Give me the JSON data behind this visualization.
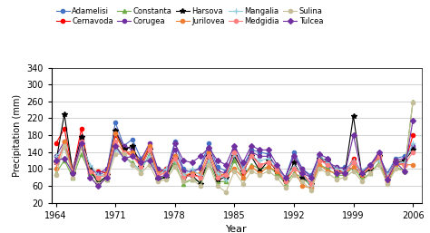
{
  "title": "",
  "xlabel": "Year",
  "ylabel": "Precipitation (mm)",
  "ylim": [
    20,
    340
  ],
  "xlim": [
    1963.5,
    2007
  ],
  "yticks": [
    20,
    60,
    100,
    140,
    180,
    220,
    260,
    300,
    340
  ],
  "xticks": [
    1964,
    1971,
    1978,
    1985,
    1992,
    1999,
    2006
  ],
  "years": [
    1964,
    1965,
    1966,
    1967,
    1968,
    1969,
    1970,
    1971,
    1972,
    1973,
    1974,
    1975,
    1976,
    1977,
    1978,
    1979,
    1980,
    1981,
    1982,
    1983,
    1984,
    1985,
    1986,
    1987,
    1988,
    1989,
    1990,
    1991,
    1992,
    1993,
    1994,
    1995,
    1996,
    1997,
    1998,
    1999,
    2000,
    2001,
    2002,
    2003,
    2004,
    2005,
    2006
  ],
  "stations": {
    "Adamelisi": {
      "color": "#4472C4",
      "marker": "o",
      "markersize": 3,
      "linewidth": 0.8,
      "values": [
        115,
        155,
        95,
        170,
        105,
        85,
        95,
        210,
        155,
        170,
        125,
        150,
        100,
        90,
        165,
        100,
        90,
        105,
        160,
        105,
        95,
        145,
        105,
        145,
        140,
        135,
        100,
        80,
        140,
        100,
        85,
        130,
        105,
        100,
        105,
        100,
        95,
        110,
        130,
        90,
        125,
        130,
        150
      ]
    },
    "Cernavoda": {
      "color": "#FF0000",
      "marker": "o",
      "markersize": 3,
      "linewidth": 0.8,
      "values": [
        160,
        195,
        95,
        195,
        90,
        95,
        90,
        180,
        145,
        130,
        110,
        150,
        90,
        100,
        130,
        80,
        90,
        80,
        130,
        80,
        90,
        140,
        90,
        135,
        110,
        115,
        100,
        70,
        100,
        90,
        65,
        120,
        115,
        100,
        90,
        125,
        90,
        105,
        130,
        80,
        120,
        110,
        180
      ]
    },
    "Constanta": {
      "color": "#70AD47",
      "marker": "^",
      "markersize": 3,
      "linewidth": 0.8,
      "values": [
        90,
        120,
        80,
        135,
        90,
        75,
        75,
        155,
        130,
        115,
        95,
        135,
        80,
        80,
        115,
        65,
        75,
        70,
        115,
        70,
        70,
        120,
        80,
        110,
        100,
        105,
        90,
        65,
        90,
        80,
        60,
        110,
        100,
        85,
        85,
        105,
        75,
        90,
        115,
        70,
        105,
        95,
        260
      ]
    },
    "Corugea": {
      "color": "#7030A0",
      "marker": "o",
      "markersize": 3,
      "linewidth": 0.8,
      "values": [
        130,
        165,
        100,
        175,
        100,
        90,
        100,
        190,
        155,
        145,
        120,
        160,
        100,
        95,
        145,
        95,
        95,
        100,
        150,
        95,
        90,
        145,
        100,
        140,
        130,
        130,
        105,
        80,
        130,
        100,
        80,
        130,
        115,
        105,
        100,
        115,
        95,
        110,
        135,
        85,
        120,
        125,
        155
      ]
    },
    "Harsova": {
      "color": "#000000",
      "marker": "*",
      "markersize": 4,
      "linewidth": 0.8,
      "values": [
        115,
        230,
        90,
        175,
        100,
        65,
        85,
        190,
        145,
        155,
        105,
        145,
        75,
        80,
        125,
        80,
        85,
        65,
        130,
        75,
        80,
        130,
        95,
        130,
        95,
        120,
        95,
        70,
        115,
        80,
        65,
        125,
        120,
        95,
        90,
        225,
        85,
        100,
        130,
        80,
        115,
        120,
        145
      ]
    },
    "Jurilovea": {
      "color": "#ED7D31",
      "marker": "o",
      "markersize": 3,
      "linewidth": 0.8,
      "values": [
        100,
        165,
        95,
        155,
        95,
        80,
        90,
        185,
        140,
        140,
        115,
        155,
        90,
        90,
        130,
        85,
        90,
        90,
        140,
        90,
        85,
        100,
        80,
        105,
        90,
        105,
        95,
        70,
        100,
        60,
        55,
        110,
        95,
        90,
        90,
        105,
        85,
        105,
        125,
        70,
        110,
        110,
        110
      ]
    },
    "Mangalia": {
      "color": "#92CDDC",
      "marker": "+",
      "markersize": 4,
      "linewidth": 0.8,
      "values": [
        130,
        150,
        90,
        160,
        110,
        85,
        85,
        145,
        130,
        110,
        100,
        130,
        85,
        100,
        120,
        85,
        100,
        85,
        120,
        90,
        75,
        135,
        100,
        130,
        120,
        125,
        105,
        80,
        105,
        90,
        60,
        130,
        115,
        100,
        95,
        120,
        95,
        110,
        120,
        85,
        115,
        115,
        160
      ]
    },
    "Medgidia": {
      "color": "#FF8080",
      "marker": "o",
      "markersize": 3,
      "linewidth": 0.8,
      "values": [
        115,
        155,
        90,
        165,
        95,
        80,
        85,
        165,
        140,
        130,
        105,
        145,
        85,
        90,
        125,
        80,
        85,
        80,
        130,
        80,
        85,
        140,
        95,
        130,
        110,
        115,
        100,
        70,
        100,
        90,
        65,
        120,
        110,
        95,
        90,
        115,
        90,
        105,
        130,
        80,
        115,
        110,
        140
      ]
    },
    "Sulina": {
      "color": "#C4BD97",
      "marker": "o",
      "markersize": 3,
      "linewidth": 0.8,
      "values": [
        85,
        155,
        80,
        150,
        80,
        65,
        75,
        135,
        135,
        110,
        90,
        110,
        70,
        75,
        105,
        70,
        75,
        60,
        110,
        60,
        45,
        95,
        65,
        95,
        85,
        95,
        80,
        55,
        85,
        70,
        50,
        100,
        90,
        75,
        80,
        95,
        70,
        90,
        110,
        65,
        100,
        95,
        258
      ]
    },
    "Tulcea": {
      "color": "#7030A0",
      "marker": "D",
      "markersize": 3,
      "linewidth": 0.8,
      "values": [
        120,
        125,
        90,
        160,
        80,
        60,
        80,
        155,
        125,
        130,
        115,
        120,
        80,
        85,
        160,
        120,
        115,
        130,
        150,
        120,
        110,
        155,
        115,
        155,
        145,
        145,
        110,
        80,
        130,
        90,
        80,
        135,
        125,
        90,
        90,
        180,
        90,
        110,
        140,
        75,
        115,
        95,
        215
      ]
    }
  },
  "legend_order": [
    "Adamelisi",
    "Cernavoda",
    "Constanta",
    "Corugea",
    "Harsova",
    "Jurilovea",
    "Mangalia",
    "Medgidia",
    "Sulina",
    "Tulcea"
  ],
  "background_color": "#FFFFFF",
  "grid_color": "#C0C0C0"
}
